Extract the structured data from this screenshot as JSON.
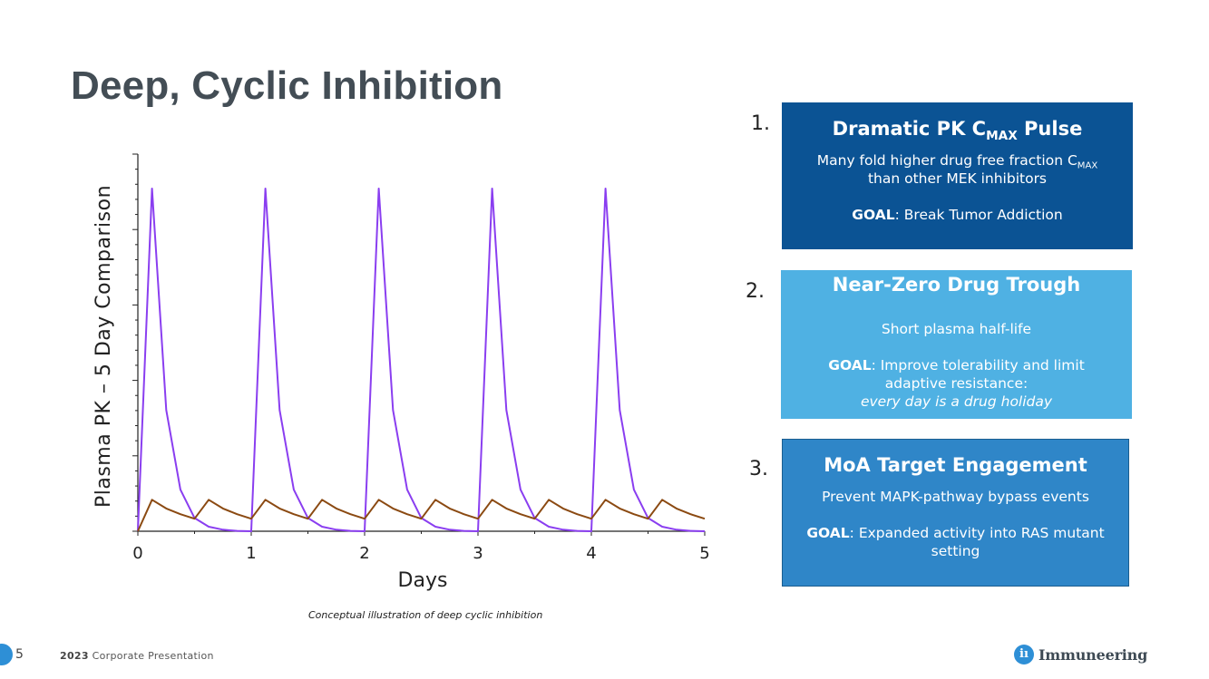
{
  "title": "Deep, Cyclic Inhibition",
  "chart_data": {
    "type": "line",
    "title": "",
    "xlabel": "Days",
    "ylabel": "Plasma PK – 5 Day Comparison",
    "x_ticks": [
      "0",
      "1",
      "2",
      "3",
      "4",
      "5"
    ],
    "xlim": [
      0,
      5
    ],
    "ylim": [
      0,
      1
    ],
    "y_tick_labels": "none",
    "grid": false,
    "legend": "none",
    "series": [
      {
        "color": "#8a3ef0",
        "x": [
          0,
          0.125,
          0.25,
          0.375,
          0.5,
          0.625,
          0.75,
          0.875,
          1,
          1.125,
          1.25,
          1.375,
          1.5,
          1.625,
          1.75,
          1.875,
          2,
          2.125,
          2.25,
          2.375,
          2.5,
          2.625,
          2.75,
          2.875,
          3,
          3.125,
          3.25,
          3.375,
          3.5,
          3.625,
          3.75,
          3.875,
          4,
          4.125,
          4.25,
          4.375,
          4.5,
          4.625,
          4.75,
          4.875,
          5
        ],
        "y": [
          0,
          0.905,
          0.32,
          0.11,
          0.035,
          0.012,
          0.004,
          0.001,
          0,
          0.905,
          0.32,
          0.11,
          0.035,
          0.012,
          0.004,
          0.001,
          0,
          0.905,
          0.32,
          0.11,
          0.035,
          0.012,
          0.004,
          0.001,
          0,
          0.905,
          0.32,
          0.11,
          0.035,
          0.012,
          0.004,
          0.001,
          0,
          0.905,
          0.32,
          0.11,
          0.035,
          0.012,
          0.004,
          0.001,
          0
        ]
      },
      {
        "color": "#8b4a12",
        "x": [
          0,
          0.125,
          0.25,
          0.375,
          0.5,
          0.625,
          0.75,
          0.875,
          1,
          1.125,
          1.25,
          1.375,
          1.5,
          1.625,
          1.75,
          1.875,
          2,
          2.125,
          2.25,
          2.375,
          2.5,
          2.625,
          2.75,
          2.875,
          3,
          3.125,
          3.25,
          3.375,
          3.5,
          3.625,
          3.75,
          3.875,
          4,
          4.125,
          4.25,
          4.375,
          4.5,
          4.625,
          4.75,
          4.875,
          5
        ],
        "y": [
          0,
          0.083,
          0.06,
          0.045,
          0.033,
          0.083,
          0.06,
          0.045,
          0.033,
          0.083,
          0.06,
          0.045,
          0.033,
          0.083,
          0.06,
          0.045,
          0.033,
          0.083,
          0.06,
          0.045,
          0.033,
          0.083,
          0.06,
          0.045,
          0.033,
          0.083,
          0.06,
          0.045,
          0.033,
          0.083,
          0.06,
          0.045,
          0.033,
          0.083,
          0.06,
          0.045,
          0.033,
          0.083,
          0.06,
          0.045,
          0.033
        ]
      }
    ]
  },
  "caption": "Conceptual illustration of deep cyclic inhibition",
  "boxes": [
    {
      "number": "1.",
      "heading_pre": "Dramatic PK C",
      "heading_sub": "MAX",
      "heading_post": " Pulse",
      "line1_pre": "Many fold higher drug free fraction C",
      "line1_sub": "MAX",
      "line2": "than other MEK inhibitors",
      "goal_label": "GOAL",
      "goal_text": ": Break Tumor Addiction",
      "color": "#0b5394"
    },
    {
      "number": "2.",
      "heading": "Near-Zero Drug Trough",
      "line1": "Short plasma half-life",
      "goal_label": "GOAL",
      "goal_text": ": Improve tolerability and limit adaptive resistance:",
      "goal_italic": "every day is a drug holiday",
      "color": "#4fb1e3"
    },
    {
      "number": "3.",
      "heading": "MoA Target Engagement",
      "line1": "Prevent MAPK-pathway bypass events",
      "goal_label": "GOAL",
      "goal_text": ": Expanded activity into RAS mutant setting",
      "color": "#2f86c8"
    }
  ],
  "footer": {
    "page": "5",
    "year": "2023",
    "label": " Corporate Presentation",
    "logo_mark": "iı",
    "logo_text": "Immuneering"
  },
  "icons": [
    "logo-mark-icon"
  ]
}
